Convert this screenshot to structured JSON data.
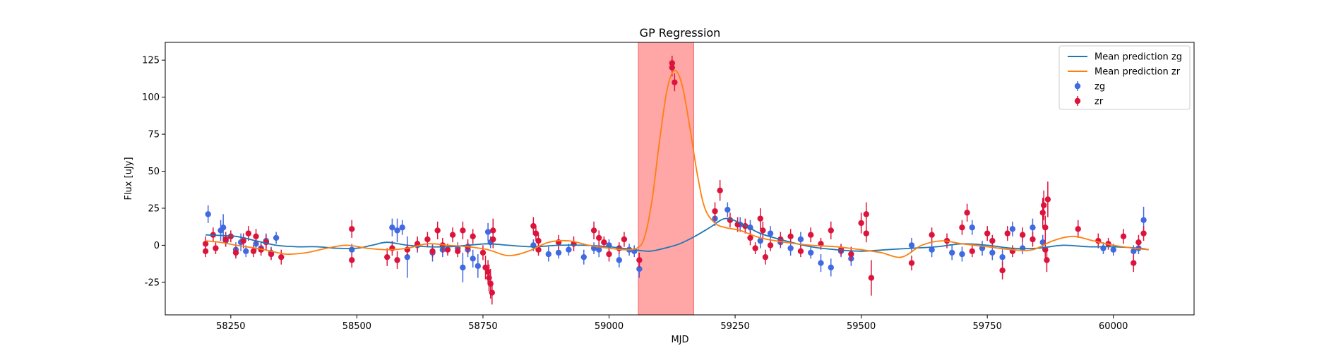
{
  "chart_data": {
    "type": "scatter",
    "title": "GP Regression",
    "xlabel": "MJD",
    "ylabel": "Flux [uJy]",
    "xlim": [
      58120,
      60160
    ],
    "ylim": [
      -47,
      137
    ],
    "x_ticks": [
      58250,
      58500,
      58750,
      59000,
      59250,
      59500,
      59750,
      60000
    ],
    "y_ticks": [
      -25,
      0,
      25,
      50,
      75,
      100,
      125
    ],
    "shaded_region": {
      "x_start": 59058,
      "x_end": 59168,
      "color": "#ff0000",
      "opacity": 0.35
    },
    "legend": {
      "placement": "top-right",
      "entries": [
        {
          "label": "Mean prediction zg",
          "kind": "line",
          "color": "#1f77b4"
        },
        {
          "label": "Mean prediction zr",
          "kind": "line",
          "color": "#ff7f0e"
        },
        {
          "label": "zg",
          "kind": "errorbar",
          "color": "#4169e1"
        },
        {
          "label": "zr",
          "kind": "errorbar",
          "color": "#dc143c"
        }
      ]
    },
    "series": [
      {
        "name": "Mean prediction zg",
        "kind": "line",
        "color": "#1f77b4",
        "x": [
          58200,
          58260,
          58300,
          58340,
          58380,
          58420,
          58460,
          58500,
          58530,
          58560,
          58600,
          58640,
          58680,
          58720,
          58760,
          58800,
          58850,
          58900,
          58950,
          59000,
          59050,
          59080,
          59110,
          59140,
          59170,
          59200,
          59230,
          59260,
          59300,
          59350,
          59400,
          59450,
          59500,
          59550,
          59600,
          59650,
          59700,
          59750,
          59800,
          59850,
          59900,
          59950,
          60000,
          60050,
          60070
        ],
        "y": [
          7,
          6,
          3,
          0,
          -1,
          -1,
          -2,
          -2,
          0,
          2,
          0,
          -1,
          -1,
          0,
          1,
          0,
          -1,
          0,
          0,
          -1,
          -3,
          -4,
          -2,
          1,
          6,
          12,
          18,
          15,
          8,
          3,
          -1,
          -3,
          -4,
          -3,
          -2,
          -1,
          1,
          0,
          -2,
          -2,
          0,
          -1,
          -1,
          -2,
          -3
        ]
      },
      {
        "name": "Mean prediction zr",
        "kind": "line",
        "color": "#ff7f0e",
        "x": [
          58200,
          58230,
          58260,
          58300,
          58330,
          58360,
          58400,
          58440,
          58480,
          58520,
          58560,
          58600,
          58640,
          58680,
          58720,
          58760,
          58800,
          58840,
          58880,
          58920,
          58960,
          59000,
          59030,
          59055,
          59070,
          59085,
          59100,
          59115,
          59130,
          59145,
          59160,
          59175,
          59190,
          59210,
          59230,
          59260,
          59300,
          59350,
          59400,
          59450,
          59500,
          59540,
          59580,
          59620,
          59660,
          59700,
          59750,
          59800,
          59840,
          59880,
          59920,
          59960,
          60000,
          60040,
          60070
        ],
        "y": [
          3,
          2,
          0,
          -2,
          -4,
          -6,
          -5,
          -2,
          0,
          -2,
          -3,
          -2,
          1,
          0,
          -1,
          -3,
          -7,
          -4,
          2,
          3,
          0,
          -2,
          -3,
          -2,
          5,
          30,
          70,
          105,
          118,
          108,
          80,
          48,
          25,
          15,
          12,
          10,
          5,
          2,
          0,
          -1,
          -3,
          -5,
          -8,
          0,
          3,
          1,
          -1,
          -3,
          -3,
          3,
          6,
          3,
          0,
          -2,
          -3
        ]
      },
      {
        "name": "zg",
        "kind": "errorbar",
        "color": "#4169e1",
        "points": [
          [
            58205,
            21,
            6
          ],
          [
            58230,
            10,
            7
          ],
          [
            58235,
            12,
            9
          ],
          [
            58240,
            3,
            4
          ],
          [
            58260,
            -3,
            5
          ],
          [
            58270,
            2,
            6
          ],
          [
            58280,
            -4,
            4
          ],
          [
            58300,
            1,
            5
          ],
          [
            58310,
            -2,
            4
          ],
          [
            58320,
            3,
            5
          ],
          [
            58330,
            -5,
            4
          ],
          [
            58340,
            5,
            4
          ],
          [
            58490,
            -3,
            4
          ],
          [
            58570,
            12,
            6
          ],
          [
            58580,
            10,
            8
          ],
          [
            58590,
            12,
            5
          ],
          [
            58600,
            -8,
            14
          ],
          [
            58620,
            0,
            5
          ],
          [
            58650,
            -5,
            6
          ],
          [
            58670,
            -3,
            5
          ],
          [
            58700,
            -2,
            4
          ],
          [
            58710,
            -15,
            10
          ],
          [
            58720,
            -3,
            5
          ],
          [
            58730,
            -9,
            6
          ],
          [
            58740,
            -14,
            8
          ],
          [
            58760,
            9,
            6
          ],
          [
            58765,
            2,
            4
          ],
          [
            58850,
            0,
            4
          ],
          [
            58880,
            -6,
            5
          ],
          [
            58900,
            -5,
            4
          ],
          [
            58920,
            -3,
            4
          ],
          [
            58950,
            -8,
            5
          ],
          [
            58970,
            -2,
            4
          ],
          [
            58980,
            -3,
            5
          ],
          [
            59000,
            0,
            4
          ],
          [
            59020,
            -10,
            5
          ],
          [
            59040,
            -3,
            4
          ],
          [
            59050,
            -4,
            4
          ],
          [
            59060,
            -16,
            6
          ],
          [
            59210,
            18,
            5
          ],
          [
            59235,
            24,
            5
          ],
          [
            59260,
            14,
            5
          ],
          [
            59280,
            12,
            5
          ],
          [
            59300,
            3,
            5
          ],
          [
            59320,
            8,
            5
          ],
          [
            59340,
            2,
            4
          ],
          [
            59360,
            -2,
            5
          ],
          [
            59380,
            4,
            5
          ],
          [
            59400,
            -5,
            4
          ],
          [
            59420,
            -12,
            6
          ],
          [
            59440,
            -15,
            6
          ],
          [
            59460,
            -4,
            4
          ],
          [
            59480,
            -9,
            5
          ],
          [
            59600,
            0,
            5
          ],
          [
            59640,
            -3,
            5
          ],
          [
            59680,
            -5,
            5
          ],
          [
            59700,
            -6,
            5
          ],
          [
            59720,
            12,
            5
          ],
          [
            59740,
            -2,
            5
          ],
          [
            59760,
            -5,
            5
          ],
          [
            59780,
            -8,
            6
          ],
          [
            59800,
            11,
            5
          ],
          [
            59820,
            -2,
            4
          ],
          [
            59840,
            12,
            6
          ],
          [
            59860,
            2,
            5
          ],
          [
            59980,
            -2,
            4
          ],
          [
            60000,
            -3,
            4
          ],
          [
            60040,
            -4,
            4
          ],
          [
            60050,
            -2,
            4
          ],
          [
            60060,
            17,
            9
          ]
        ]
      },
      {
        "name": "zr",
        "kind": "errorbar",
        "color": "#dc143c",
        "points": [
          [
            58200,
            1,
            5
          ],
          [
            58200,
            -4,
            4
          ],
          [
            58215,
            7,
            5
          ],
          [
            58220,
            -2,
            4
          ],
          [
            58240,
            4,
            5
          ],
          [
            58250,
            6,
            4
          ],
          [
            58260,
            -5,
            4
          ],
          [
            58275,
            3,
            5
          ],
          [
            58285,
            8,
            5
          ],
          [
            58295,
            -4,
            4
          ],
          [
            58300,
            6,
            5
          ],
          [
            58310,
            -3,
            4
          ],
          [
            58320,
            2,
            5
          ],
          [
            58330,
            -6,
            4
          ],
          [
            58350,
            -8,
            5
          ],
          [
            58490,
            11,
            6
          ],
          [
            58490,
            -10,
            5
          ],
          [
            58560,
            -8,
            6
          ],
          [
            58570,
            -2,
            5
          ],
          [
            58580,
            -10,
            6
          ],
          [
            58600,
            -3,
            4
          ],
          [
            58620,
            1,
            5
          ],
          [
            58640,
            4,
            5
          ],
          [
            58650,
            -4,
            4
          ],
          [
            58660,
            10,
            6
          ],
          [
            58670,
            0,
            5
          ],
          [
            58680,
            -3,
            4
          ],
          [
            58690,
            7,
            5
          ],
          [
            58700,
            -4,
            4
          ],
          [
            58710,
            10,
            6
          ],
          [
            58720,
            -1,
            5
          ],
          [
            58730,
            6,
            5
          ],
          [
            58750,
            -5,
            5
          ],
          [
            58755,
            -15,
            8
          ],
          [
            58760,
            -18,
            8
          ],
          [
            58762,
            -22,
            9
          ],
          [
            58765,
            -26,
            10
          ],
          [
            58768,
            -32,
            8
          ],
          [
            58770,
            10,
            8
          ],
          [
            58770,
            4,
            6
          ],
          [
            58850,
            13,
            6
          ],
          [
            58855,
            8,
            5
          ],
          [
            58860,
            3,
            5
          ],
          [
            58860,
            -3,
            4
          ],
          [
            58900,
            2,
            5
          ],
          [
            58930,
            1,
            5
          ],
          [
            58970,
            10,
            6
          ],
          [
            58980,
            5,
            5
          ],
          [
            58990,
            2,
            4
          ],
          [
            59000,
            -6,
            5
          ],
          [
            59020,
            -2,
            4
          ],
          [
            59030,
            4,
            5
          ],
          [
            59060,
            -10,
            5
          ],
          [
            59125,
            123,
            5
          ],
          [
            59125,
            120,
            6
          ],
          [
            59130,
            110,
            6
          ],
          [
            59210,
            23,
            6
          ],
          [
            59220,
            37,
            7
          ],
          [
            59240,
            17,
            5
          ],
          [
            59255,
            14,
            5
          ],
          [
            59270,
            13,
            5
          ],
          [
            59280,
            5,
            5
          ],
          [
            59290,
            -2,
            4
          ],
          [
            59300,
            18,
            7
          ],
          [
            59305,
            10,
            6
          ],
          [
            59310,
            -8,
            5
          ],
          [
            59320,
            0,
            4
          ],
          [
            59340,
            4,
            5
          ],
          [
            59360,
            6,
            5
          ],
          [
            59380,
            -4,
            4
          ],
          [
            59400,
            7,
            5
          ],
          [
            59420,
            1,
            4
          ],
          [
            59440,
            10,
            6
          ],
          [
            59460,
            -3,
            4
          ],
          [
            59480,
            -6,
            5
          ],
          [
            59500,
            15,
            7
          ],
          [
            59510,
            21,
            8
          ],
          [
            59510,
            8,
            6
          ],
          [
            59520,
            -22,
            12
          ],
          [
            59600,
            -12,
            5
          ],
          [
            59640,
            7,
            5
          ],
          [
            59670,
            3,
            5
          ],
          [
            59700,
            12,
            5
          ],
          [
            59710,
            22,
            6
          ],
          [
            59720,
            -4,
            4
          ],
          [
            59750,
            8,
            5
          ],
          [
            59760,
            3,
            4
          ],
          [
            59780,
            -17,
            6
          ],
          [
            59790,
            8,
            5
          ],
          [
            59800,
            -4,
            4
          ],
          [
            59820,
            7,
            5
          ],
          [
            59840,
            4,
            5
          ],
          [
            59860,
            22,
            10
          ],
          [
            59862,
            27,
            10
          ],
          [
            59865,
            12,
            8
          ],
          [
            59865,
            -3,
            7
          ],
          [
            59868,
            -10,
            8
          ],
          [
            59870,
            31,
            12
          ],
          [
            59930,
            11,
            6
          ],
          [
            59970,
            3,
            5
          ],
          [
            59990,
            1,
            4
          ],
          [
            60020,
            6,
            5
          ],
          [
            60040,
            -12,
            6
          ],
          [
            60050,
            2,
            5
          ],
          [
            60060,
            8,
            5
          ]
        ]
      }
    ]
  }
}
